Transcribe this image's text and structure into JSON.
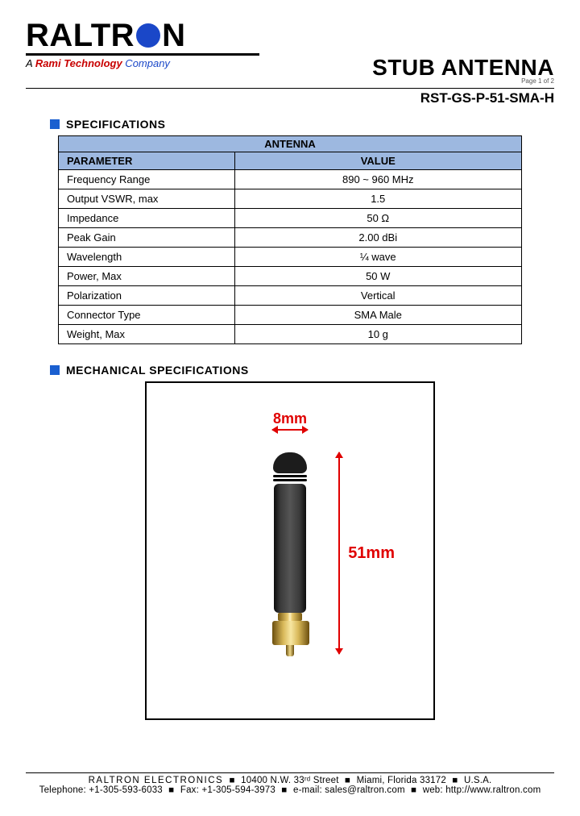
{
  "logo": {
    "text_left": "RALTR",
    "text_right": "N",
    "tagline_a": "A ",
    "tagline_rami": "Rami Technology",
    "tagline_company": " Company"
  },
  "header": {
    "title": "STUB ANTENNA",
    "page_indicator": "Page 1 of 2",
    "part_number": "RST-GS-P-51-SMA-H"
  },
  "sections": {
    "specs": "SPECIFICATIONS",
    "mech": "MECHANICAL SPECIFICATIONS"
  },
  "spec_table": {
    "group_header": "ANTENNA",
    "col_parameter": "PARAMETER",
    "col_value": "VALUE",
    "header_bg": "#9db8e0",
    "rows": [
      {
        "param": "Frequency Range",
        "value": "890 ~ 960 MHz"
      },
      {
        "param": "Output VSWR, max",
        "value": "1.5"
      },
      {
        "param": "Impedance",
        "value": "50 Ω"
      },
      {
        "param": "Peak Gain",
        "value": "2.00 dBi"
      },
      {
        "param": "Wavelength",
        "value": "¼ wave"
      },
      {
        "param": "Power, Max",
        "value": "50 W"
      },
      {
        "param": "Polarization",
        "value": "Vertical"
      },
      {
        "param": "Connector Type",
        "value": "SMA Male"
      },
      {
        "param": "Weight, Max",
        "value": "10 g"
      }
    ]
  },
  "mechanical": {
    "width_label": "8mm",
    "height_label": "51mm",
    "dim_color": "#e00000",
    "body_color": "#1c1c1c",
    "connector_color": "#d9b95a"
  },
  "footer": {
    "company": "RALTRON ELECTRONICS",
    "address": "10400 N.W. 33ʳᵈ Street",
    "city": "Miami, Florida 33172",
    "country": "U.S.A.",
    "tel_label": "Telephone:",
    "tel": "+1-305-593-6033",
    "fax_label": "Fax:",
    "fax": "+1-305-594-3973",
    "email_label": "e-mail:",
    "email": "sales@raltron.com",
    "web_label": "web:",
    "web": "http://www.raltron.com"
  },
  "colors": {
    "accent_blue": "#1a47c8",
    "bullet_blue": "#1a5fd0",
    "red": "#e00000"
  }
}
